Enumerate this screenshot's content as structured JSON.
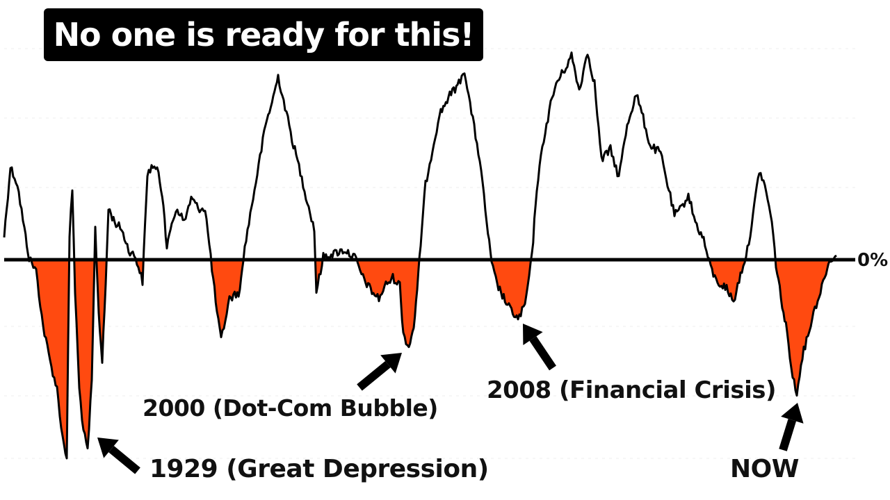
{
  "title": "No one is ready for this!",
  "chart_data": {
    "type": "area",
    "ylabel": "",
    "xlabel": "",
    "zero_label": "0%",
    "line_color": "#000000",
    "negative_fill_color": "#ff4a10",
    "grid": false,
    "annotations": [
      {
        "key": "1929",
        "text": "1929 (Great Depression)"
      },
      {
        "key": "2000",
        "text": "2000 (Dot-Com Bubble)"
      },
      {
        "key": "2008",
        "text": "2008 (Financial Crisis)"
      },
      {
        "key": "now",
        "text": "NOW"
      }
    ]
  }
}
